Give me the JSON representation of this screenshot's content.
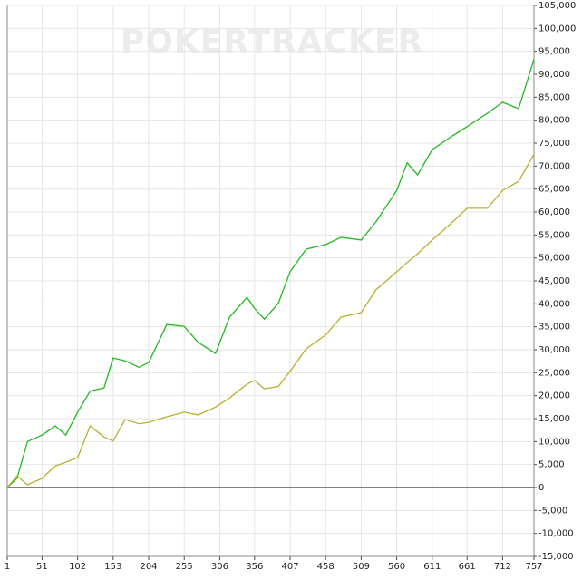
{
  "chart_data": {
    "type": "line",
    "watermark": "POKERTRACKER",
    "x": [
      1,
      15,
      30,
      51,
      70,
      85,
      102,
      120,
      140,
      153,
      170,
      190,
      204,
      230,
      255,
      275,
      300,
      320,
      345,
      356,
      370,
      390,
      407,
      430,
      458,
      480,
      509,
      530,
      560,
      575,
      590,
      611,
      640,
      661,
      690,
      712,
      735,
      757
    ],
    "series": [
      {
        "color": "#22b822",
        "values": [
          0,
          2000,
          10000,
          11400,
          13400,
          11400,
          16400,
          21000,
          21700,
          28200,
          27600,
          26200,
          27200,
          35500,
          35100,
          31600,
          29200,
          37100,
          41400,
          39000,
          36700,
          40100,
          47000,
          51900,
          52900,
          54500,
          53900,
          57800,
          64700,
          70700,
          68100,
          73600,
          76600,
          78600,
          81500,
          83900,
          82500,
          93300
        ]
      },
      {
        "color": "#b8b030",
        "values": [
          0,
          2500,
          600,
          2000,
          4700,
          5500,
          6500,
          13400,
          11000,
          10100,
          14800,
          13900,
          14200,
          15400,
          16400,
          15800,
          17500,
          19500,
          22500,
          23300,
          21500,
          22000,
          25300,
          30200,
          33200,
          37100,
          38100,
          43000,
          47000,
          49000,
          50900,
          53900,
          57800,
          60800,
          60800,
          64700,
          66700,
          72600
        ]
      }
    ],
    "xlim": [
      1,
      757
    ],
    "xticks": [
      1,
      51,
      102,
      153,
      204,
      255,
      306,
      356,
      407,
      458,
      509,
      560,
      611,
      661,
      712,
      757
    ],
    "ylim": [
      -15000,
      105000
    ],
    "yticks": [
      {
        "value": -15000,
        "label": "-15,000"
      },
      {
        "value": -10000,
        "label": "-10,000"
      },
      {
        "value": -5000,
        "label": "-5,000"
      },
      0,
      {
        "value": 5000,
        "label": "5,000"
      },
      {
        "value": 10000,
        "label": "10,000"
      },
      {
        "value": 15000,
        "label": "15,000"
      },
      {
        "value": 20000,
        "label": "20,000"
      },
      {
        "value": 25000,
        "label": "25,000"
      },
      {
        "value": 30000,
        "label": "30,000"
      },
      {
        "value": 35000,
        "label": "35,000"
      },
      {
        "value": 40000,
        "label": "40,000"
      },
      {
        "value": 45000,
        "label": "45,000"
      },
      {
        "value": 50000,
        "label": "50,000"
      },
      {
        "value": 55000,
        "label": "55,000"
      },
      {
        "value": 60000,
        "label": "60,000"
      },
      {
        "value": 65000,
        "label": "65,000"
      },
      {
        "value": 70000,
        "label": "70,000"
      },
      {
        "value": 75000,
        "label": "75,000"
      },
      {
        "value": 80000,
        "label": "80,000"
      },
      {
        "value": 85000,
        "label": "85,000"
      },
      {
        "value": 90000,
        "label": "90,000"
      },
      {
        "value": 95000,
        "label": "95,000"
      },
      {
        "value": 100000,
        "label": "100,000"
      },
      {
        "value": 105000,
        "label": "105,000"
      }
    ],
    "grid": true
  }
}
